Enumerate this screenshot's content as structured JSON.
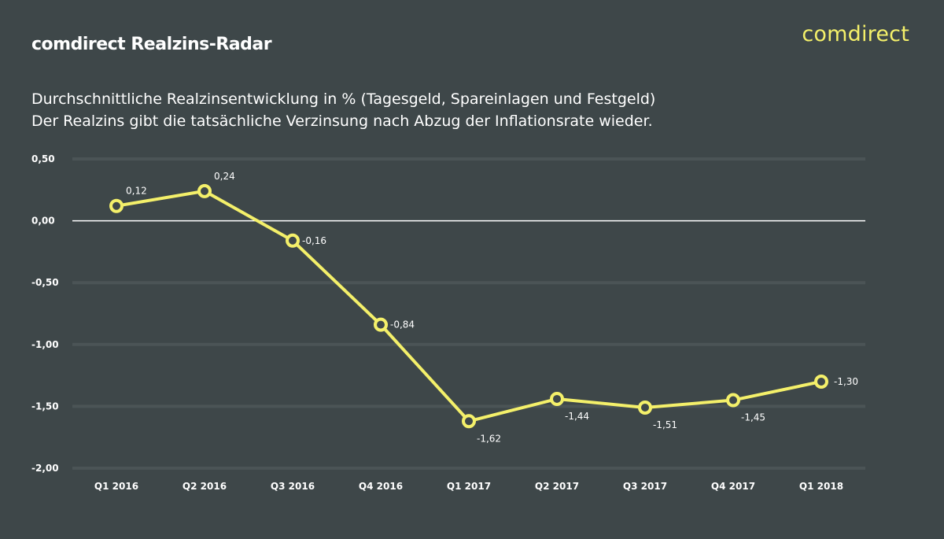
{
  "header": {
    "title": "comdirect Realzins-Radar",
    "brand": "comdirect",
    "subtitle_line1": "Durchschnittliche Realzinsentwicklung in % (Tagesgeld, Spareinlagen und Festgeld)",
    "subtitle_line2": "Der Realzins gibt die tatsächliche Verzinsung nach Abzug der Inflationsrate wieder."
  },
  "colors": {
    "background": "#3e4749",
    "line": "#f4f06a",
    "marker_fill": "#3e4749",
    "zero_line": "#ffffff",
    "grid": "#4b5456",
    "text": "#ffffff"
  },
  "chart_data": {
    "type": "line",
    "categories": [
      "Q1 2016",
      "Q2 2016",
      "Q3 2016",
      "Q4 2016",
      "Q1 2017",
      "Q2 2017",
      "Q3 2017",
      "Q4 2017",
      "Q1 2018"
    ],
    "series": [
      {
        "values": [
          0.12,
          0.24,
          -0.16,
          -0.84,
          -1.62,
          -1.44,
          -1.51,
          -1.45,
          -1.3
        ],
        "labels": [
          "0,12",
          "0,24",
          "-0,16",
          "-0,84",
          "-1,62",
          "-1,44",
          "-1,51",
          "-1,45",
          "-1,30"
        ]
      }
    ],
    "ylim": [
      -2.0,
      0.5
    ],
    "yticks": [
      0.5,
      0.0,
      -0.5,
      -1.0,
      -1.5,
      -2.0
    ],
    "ytick_labels": [
      "0,50",
      "0,00",
      "-0,50",
      "-1,00",
      "-1,50",
      "-2,00"
    ],
    "grid": true,
    "title": "",
    "xlabel": "",
    "ylabel": ""
  }
}
